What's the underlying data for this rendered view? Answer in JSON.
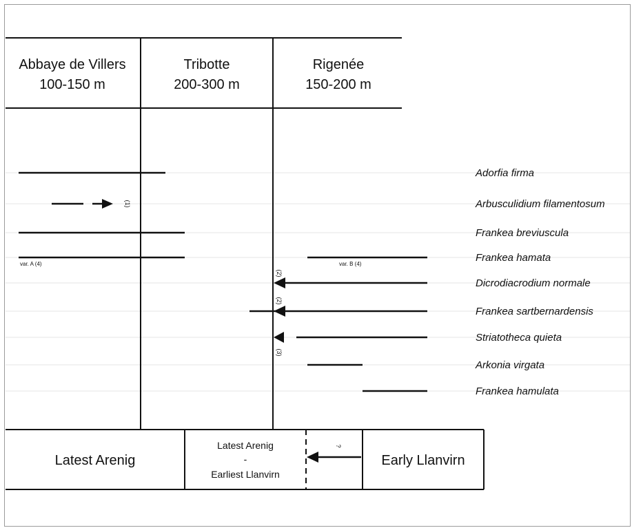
{
  "columns": [
    {
      "locality": "Abbaye de Villers",
      "thickness": "100-150 m"
    },
    {
      "locality": "Tribotte",
      "thickness": "200-300 m"
    },
    {
      "locality": "Rigenée",
      "thickness": "150-200 m"
    }
  ],
  "species": [
    "Adorfia firma",
    "Arbusculidium filamentosum",
    "Frankea breviuscula",
    "Frankea hamata",
    "Dicrodiacrodium normale",
    "Frankea sartbernardensis",
    "Striatotheca quieta",
    "Arkonia virgata",
    "Frankea hamulata"
  ],
  "variant_labels": {
    "var_a": "var. A (4)",
    "var_b": "var. B (4)"
  },
  "notes": {
    "n1": "(1)",
    "n2a": "(2)",
    "n2b": "(2)",
    "n3": "(3)"
  },
  "zones": {
    "left": "Latest Arenig",
    "middle_top": "Latest Arenig",
    "middle_dash": "-",
    "middle_bottom": "Earliest Llanvirn",
    "query": "?",
    "right": "Early Llanvirn"
  }
}
